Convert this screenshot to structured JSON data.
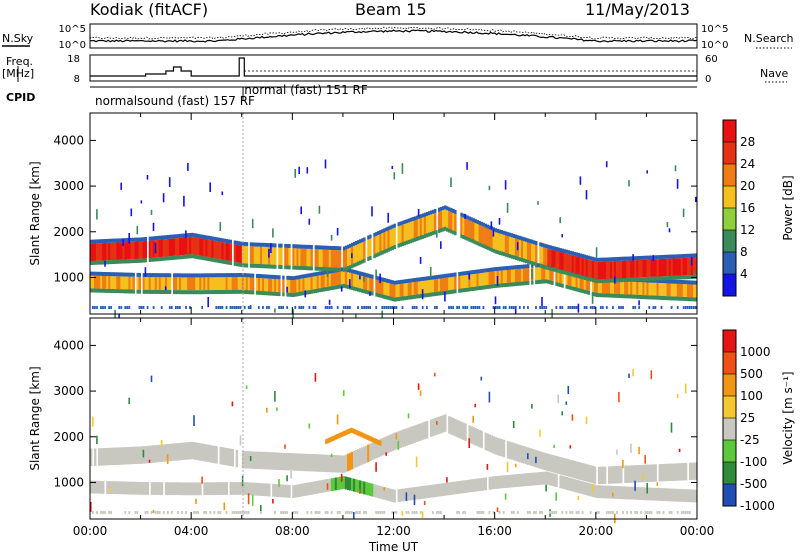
{
  "header": {
    "station": "Kodiak (fitACF)",
    "beam": "Beam 15",
    "date": "11/May/2013"
  },
  "left_labels": {
    "nsky": "N.Sky",
    "freq": "Freq.",
    "mhz": "[MHz]",
    "cpid": "CPID"
  },
  "right_labels": {
    "nsearch": "N.Search",
    "nave": "Nave"
  },
  "noise_panel": {
    "left_ticks": [
      "10^5",
      "10^0"
    ],
    "right_ticks": [
      "10^5",
      "10^0"
    ]
  },
  "freq_panel": {
    "left_ticks": [
      "18",
      "8"
    ],
    "right_ticks": [
      "60",
      "0"
    ]
  },
  "cpid_segments": [
    {
      "label": "normalsound (fast) 157 RF"
    },
    {
      "label": "normal (fast) 151 RF"
    }
  ],
  "axes": {
    "ylabel": "Slant Range [km]",
    "xlabel": "Time UT",
    "y_ticks": [
      "1000",
      "2000",
      "3000",
      "4000"
    ],
    "x_ticks": [
      "00:00",
      "04:00",
      "08:00",
      "12:00",
      "16:00",
      "20:00",
      "00:00"
    ]
  },
  "power_colorbar": {
    "label": "Power [dB]",
    "ticks": [
      "4",
      "8",
      "12",
      "16",
      "20",
      "24",
      "28"
    ],
    "colors": [
      "#1414e6",
      "#2a5fb4",
      "#3a8a5a",
      "#8fcf3c",
      "#f5c01e",
      "#f07d14",
      "#e63214",
      "#e81010"
    ]
  },
  "velocity_colorbar": {
    "label": "Velocity [m s⁻¹]",
    "ticks": [
      "1000",
      "500",
      "100",
      "25",
      "-25",
      "-100",
      "-500",
      "-1000"
    ],
    "colors": [
      "#1f4fb5",
      "#2f8a3a",
      "#5cc83c",
      "#c8c8c0",
      "#f5c832",
      "#f09614",
      "#f05014",
      "#e61414"
    ]
  },
  "chart_data": {
    "type": "heatmap",
    "title": "Beam 15",
    "xlabel": "Time UT",
    "ylabel": "Slant Range [km]",
    "xlim_hours": [
      0,
      24
    ],
    "ylim_km": [
      200,
      4600
    ],
    "scatter_bands": [
      {
        "name": "lower band",
        "t_hours": [
          0,
          2,
          4,
          6,
          8,
          10,
          12,
          14,
          16,
          18,
          20,
          22,
          24
        ],
        "range_km": [
          900,
          870,
          860,
          870,
          800,
          1000,
          700,
          850,
          1000,
          1100,
          800,
          750,
          700
        ]
      },
      {
        "name": "upper band",
        "t_hours": [
          0,
          2,
          4,
          6,
          8,
          10,
          12,
          14,
          16,
          18,
          20,
          22,
          24
        ],
        "range_km": [
          1550,
          1600,
          1700,
          1500,
          1450,
          1400,
          1900,
          2300,
          1800,
          1450,
          1150,
          1200,
          1250
        ]
      }
    ]
  }
}
